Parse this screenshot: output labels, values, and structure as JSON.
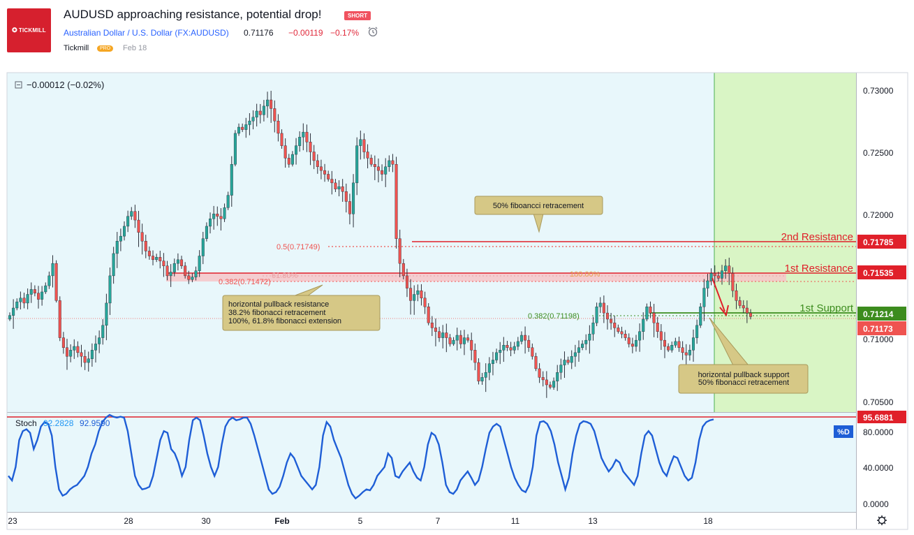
{
  "header": {
    "logo_text": "TICKMILL",
    "title": "AUDUSD approaching resistance, potential drop!",
    "badge": "SHORT",
    "symbol": "Australian Dollar / U.S. Dollar (FX:AUDUSD)",
    "price": "0.71176",
    "change": "−0.00119",
    "change_pct": "−0.17%",
    "author": "Tickmill",
    "author_badge": "PRO",
    "date": "Feb 18"
  },
  "colors": {
    "up": "#26a69a",
    "down": "#ef5350",
    "resistance": "#e0202a",
    "support": "#3c8c1e",
    "panel_bg": "#e8f7fb",
    "target_zone": "#d9f5c5",
    "stoch": "#1e5ed6",
    "label_bg": "#d6c886"
  },
  "chart_data": {
    "type": "candlestick",
    "symbol": "AUDUSD",
    "x_ticks": [
      "23",
      "28",
      "30",
      "Feb",
      "5",
      "7",
      "11",
      "13",
      "18"
    ],
    "y_ticks": [
      "0.73000",
      "0.72500",
      "0.72000",
      "0.71000",
      "0.70500"
    ],
    "ylim": [
      0.704,
      0.7314
    ],
    "legend_value": "−0.00012 (−0.02%)",
    "price_labels": {
      "second_resistance": "0.71785",
      "first_resistance": "0.71535",
      "first_support": "0.71214",
      "last": "0.71173"
    },
    "levels": {
      "second_resistance": 0.71785,
      "first_resistance": 0.71535,
      "first_support": 0.71214,
      "last": 0.71173,
      "fib_050": 0.71749,
      "fib_0382_left": 0.71472,
      "fib_0382_right": 0.71198,
      "fib_left_extension": 0.715
    },
    "level_labels": {
      "second_resistance": "2nd Resistance",
      "first_resistance": "1st Resistance",
      "first_support": "1st Support",
      "fib_050": "0.5(0.71749)",
      "fib_0382_left": "0.382(0.71472)",
      "fib_0382_right": "0.382(0.71198)",
      "ext_618": "61.80%",
      "ext_100": "100.00%"
    },
    "annotations": [
      {
        "id": "fib50",
        "lines": [
          "50% fiboancci retracement"
        ]
      },
      {
        "id": "left",
        "lines": [
          "horizontal pullback resistance",
          "38.2% fibonacci retracement",
          "100%, 61.8% fibonacci extension"
        ]
      },
      {
        "id": "right",
        "lines": [
          "horizontal pullback support",
          "50% fibonacci retracement"
        ]
      }
    ],
    "closes": [
      0.7118,
      0.7124,
      0.7129,
      0.7132,
      0.7128,
      0.7135,
      0.7139,
      0.7136,
      0.7131,
      0.7137,
      0.7142,
      0.715,
      0.716,
      0.713,
      0.71,
      0.7092,
      0.7085,
      0.709,
      0.7093,
      0.7088,
      0.7085,
      0.708,
      0.7083,
      0.709,
      0.7095,
      0.71,
      0.711,
      0.7128,
      0.715,
      0.7168,
      0.7178,
      0.7182,
      0.719,
      0.7198,
      0.7202,
      0.7195,
      0.7185,
      0.7178,
      0.717,
      0.7166,
      0.7163,
      0.7165,
      0.7162,
      0.7158,
      0.715,
      0.7153,
      0.716,
      0.7163,
      0.7158,
      0.715,
      0.7147,
      0.7149,
      0.7154,
      0.7166,
      0.718,
      0.719,
      0.7196,
      0.72,
      0.7198,
      0.7196,
      0.7205,
      0.7215,
      0.724,
      0.7265,
      0.727,
      0.7268,
      0.7272,
      0.7275,
      0.7278,
      0.7283,
      0.728,
      0.7287,
      0.7292,
      0.7285,
      0.7275,
      0.7265,
      0.7255,
      0.7245,
      0.724,
      0.7248,
      0.7255,
      0.7262,
      0.7266,
      0.7258,
      0.725,
      0.7243,
      0.7238,
      0.7235,
      0.7232,
      0.7228,
      0.7225,
      0.722,
      0.7222,
      0.7218,
      0.721,
      0.72,
      0.7225,
      0.7255,
      0.726,
      0.725,
      0.7245,
      0.724,
      0.7238,
      0.7235,
      0.7232,
      0.7238,
      0.7243,
      0.724,
      0.718,
      0.716,
      0.715,
      0.714,
      0.713,
      0.7135,
      0.7138,
      0.7132,
      0.7125,
      0.7112,
      0.7108,
      0.7105,
      0.71,
      0.7104,
      0.71,
      0.7095,
      0.7098,
      0.7102,
      0.7095,
      0.71,
      0.7098,
      0.709,
      0.708,
      0.7065,
      0.7068,
      0.7072,
      0.7079,
      0.7082,
      0.7088,
      0.709,
      0.7094,
      0.7092,
      0.709,
      0.7093,
      0.7097,
      0.7102,
      0.7098,
      0.7092,
      0.7085,
      0.7075,
      0.7068,
      0.7066,
      0.7062,
      0.706,
      0.7065,
      0.7072,
      0.7078,
      0.7082,
      0.708,
      0.7085,
      0.7088,
      0.7092,
      0.7095,
      0.7098,
      0.7103,
      0.7112,
      0.7125,
      0.7128,
      0.712,
      0.7115,
      0.7112,
      0.7108,
      0.7105,
      0.7103,
      0.71,
      0.7095,
      0.7093,
      0.7098,
      0.7105,
      0.7115,
      0.7125,
      0.712,
      0.7112,
      0.7105,
      0.7098,
      0.7093,
      0.709,
      0.7094,
      0.7097,
      0.7092,
      0.7088,
      0.7086,
      0.709,
      0.71,
      0.711,
      0.7125,
      0.714,
      0.7146,
      0.7152,
      0.715,
      0.7148,
      0.7154,
      0.7158,
      0.7152,
      0.7138,
      0.713,
      0.7126,
      0.7124,
      0.712,
      0.7117
    ],
    "stoch": {
      "label": "Stoch",
      "k_value": "92.2828",
      "d_value": "92.9590",
      "line_label": "95.6881",
      "line_level": 95.6881,
      "badge": "%D",
      "y_ticks": [
        "80.0000",
        "40.0000",
        "0.0000"
      ],
      "values": [
        30,
        25,
        40,
        70,
        80,
        82,
        78,
        60,
        70,
        85,
        90,
        88,
        75,
        40,
        15,
        8,
        10,
        15,
        18,
        20,
        25,
        30,
        40,
        55,
        65,
        80,
        90,
        95,
        98,
        96,
        95,
        96,
        95,
        80,
        55,
        30,
        20,
        15,
        16,
        18,
        30,
        50,
        70,
        80,
        78,
        60,
        55,
        45,
        30,
        40,
        70,
        92,
        95,
        92,
        75,
        55,
        40,
        30,
        40,
        65,
        85,
        92,
        95,
        92,
        93,
        95,
        95,
        88,
        75,
        60,
        45,
        30,
        15,
        10,
        12,
        18,
        30,
        45,
        55,
        50,
        40,
        30,
        25,
        20,
        15,
        20,
        40,
        75,
        90,
        85,
        70,
        60,
        50,
        35,
        20,
        10,
        5,
        8,
        12,
        15,
        14,
        20,
        30,
        35,
        40,
        55,
        50,
        30,
        28,
        35,
        40,
        45,
        35,
        28,
        25,
        40,
        65,
        78,
        75,
        65,
        45,
        20,
        12,
        10,
        15,
        25,
        30,
        35,
        28,
        20,
        25,
        40,
        60,
        78,
        85,
        88,
        85,
        70,
        55,
        40,
        28,
        20,
        14,
        12,
        20,
        40,
        75,
        90,
        91,
        88,
        80,
        65,
        45,
        30,
        15,
        28,
        55,
        75,
        88,
        91,
        90,
        88,
        80,
        65,
        50,
        42,
        35,
        40,
        48,
        45,
        35,
        30,
        25,
        20,
        30,
        55,
        75,
        80,
        75,
        60,
        45,
        35,
        30,
        42,
        52,
        50,
        40,
        30,
        25,
        28,
        45,
        70,
        85,
        90,
        92,
        93
      ]
    }
  }
}
